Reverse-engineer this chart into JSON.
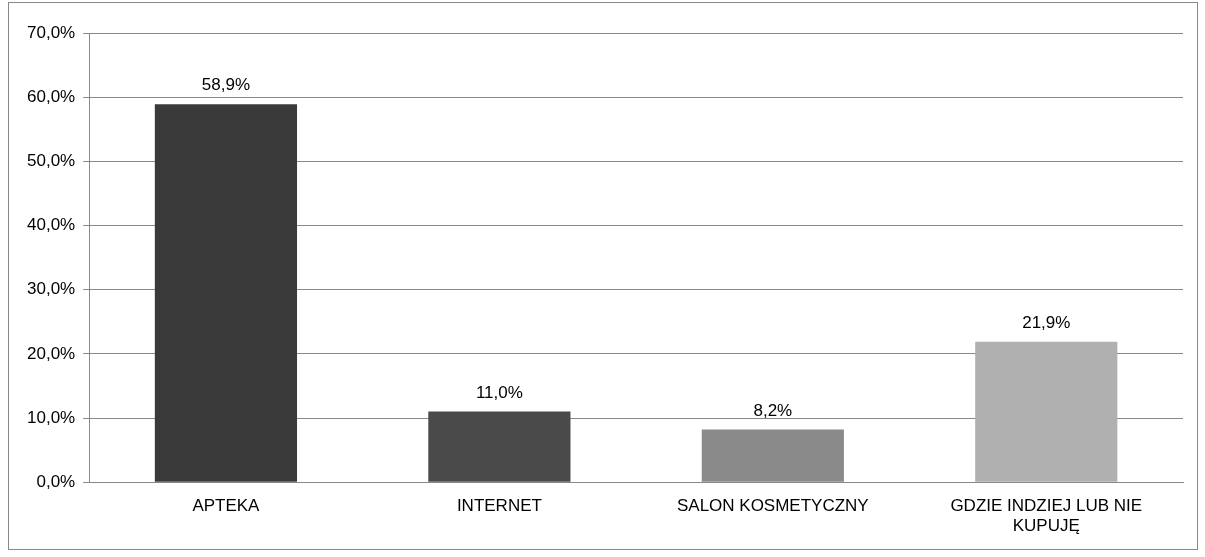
{
  "chart_data": {
    "type": "bar",
    "categories": [
      "APTEKA",
      "INTERNET",
      "SALON KOSMETYCZNY",
      "GDZIE INDZIEJ LUB NIE KUPUJĘ"
    ],
    "values": [
      58.9,
      11.0,
      8.2,
      21.9
    ],
    "colors": [
      "#3a3a3a",
      "#4a4a4a",
      "#8a8a8a",
      "#b0b0b0"
    ],
    "value_labels": [
      "58,9%",
      "11,0%",
      "8,2%",
      "21,9%"
    ],
    "ylim": [
      0,
      70
    ],
    "yticks": [
      {
        "value": 0,
        "label": "0,0%"
      },
      {
        "value": 10,
        "label": "10,0%"
      },
      {
        "value": 20,
        "label": "20,0%"
      },
      {
        "value": 30,
        "label": "30,0%"
      },
      {
        "value": 40,
        "label": "40,0%"
      },
      {
        "value": 50,
        "label": "50,0%"
      },
      {
        "value": 60,
        "label": "60,0%"
      },
      {
        "value": 70,
        "label": "70,0%"
      }
    ],
    "grid": "y",
    "legend": false
  }
}
